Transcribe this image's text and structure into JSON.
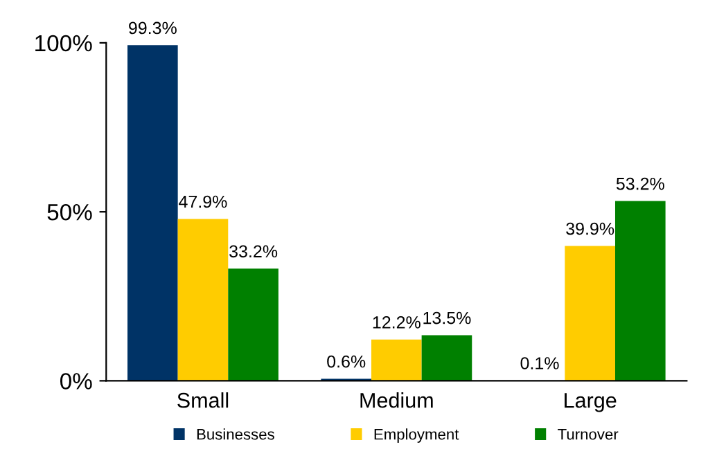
{
  "chart_data": {
    "type": "bar",
    "categories": [
      "Small",
      "Medium",
      "Large"
    ],
    "series": [
      {
        "name": "Businesses",
        "color": "#003366",
        "values": [
          99.3,
          0.6,
          0.1
        ]
      },
      {
        "name": "Employment",
        "color": "#ffcc00",
        "values": [
          47.9,
          12.2,
          39.9
        ]
      },
      {
        "name": "Turnover",
        "color": "#008000",
        "values": [
          33.2,
          13.5,
          53.2
        ]
      }
    ],
    "value_labels": [
      [
        "99.3%",
        "0.6%",
        "0.1%"
      ],
      [
        "47.9%",
        "12.2%",
        "39.9%"
      ],
      [
        "33.2%",
        "13.5%",
        "53.2%"
      ]
    ],
    "ylim": [
      0,
      100
    ],
    "yticks": [
      {
        "value": 0,
        "label": "0%"
      },
      {
        "value": 50,
        "label": "50%"
      },
      {
        "value": 100,
        "label": "100%"
      }
    ],
    "grid": false,
    "legend": "bottom"
  }
}
